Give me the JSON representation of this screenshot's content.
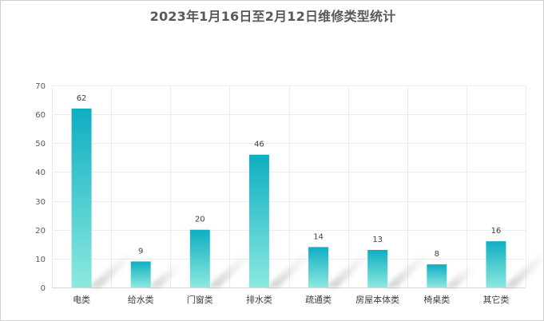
{
  "chart_data": {
    "type": "bar",
    "title": "2023年1月16日至2月12日维修类型统计",
    "xlabel": "",
    "ylabel": "",
    "categories": [
      "电类",
      "给水类",
      "门窗类",
      "排水类",
      "疏通类",
      "房屋本体类",
      "椅桌类",
      "其它类"
    ],
    "values": [
      62,
      9,
      20,
      46,
      14,
      13,
      8,
      16
    ],
    "ylim": [
      0,
      70
    ],
    "yticks": [
      0,
      10,
      20,
      30,
      40,
      50,
      60,
      70
    ],
    "grid": true,
    "legend": "none",
    "data_labels": true,
    "colors": {
      "bar_top": "#0eaec2",
      "bar_bottom": "#8ce9df",
      "grid": "#ececec",
      "axis": "#d9d9d9",
      "text": "#595959"
    }
  }
}
